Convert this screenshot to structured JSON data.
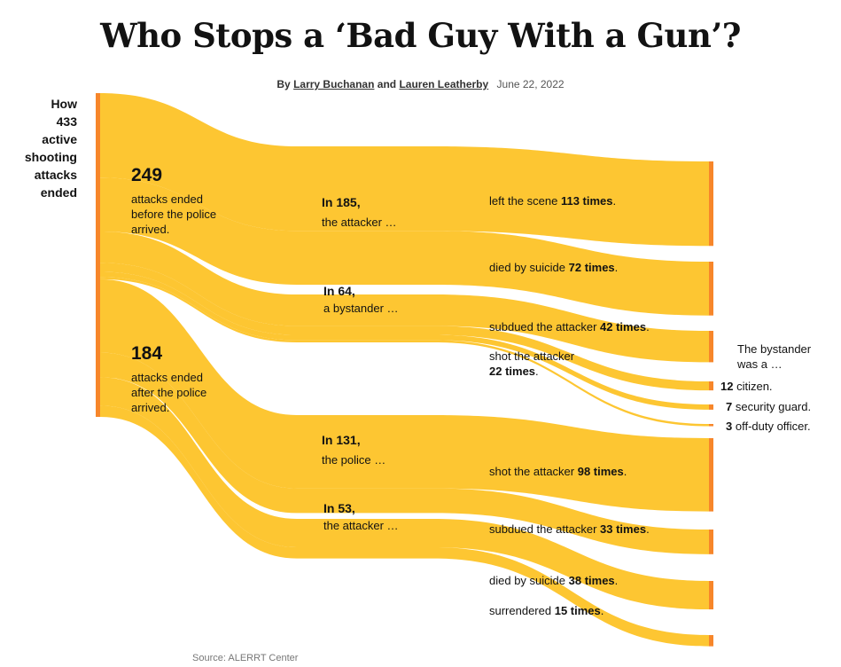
{
  "header": {
    "title": "Who Stops a ‘Bad Guy With a Gun’?",
    "by": "By",
    "author1": "Larry Buchanan",
    "and": "and",
    "author2": "Lauren Leatherby",
    "date": "June 22, 2022"
  },
  "root_label": [
    "How",
    "433",
    "active",
    "shooting",
    "attacks",
    "ended"
  ],
  "labels": {
    "before": {
      "num": "249",
      "text": "attacks ended before the police arrived."
    },
    "after": {
      "num": "184",
      "text": "attacks ended after the police arrived."
    },
    "g185": {
      "head": "In 185,",
      "text": "the attacker …"
    },
    "g64": {
      "head": "In 64,",
      "text": "a bystander …"
    },
    "g131": {
      "head": "In 131,",
      "text": "the police …"
    },
    "g53": {
      "head": "In 53,",
      "text": "the attacker …"
    },
    "left_scene": {
      "pre": "left the scene ",
      "bold": "113 times",
      "post": "."
    },
    "suicide1": {
      "pre": "died by suicide ",
      "bold": "72 times",
      "post": "."
    },
    "subdued1": {
      "pre": "subdued the attacker ",
      "bold": "42 times",
      "post": "."
    },
    "shot1": {
      "pre": "shot the attacker",
      "bold": "22 times",
      "post": "."
    },
    "bystander_head": "The bystander was a …",
    "citizen": {
      "bold": "12",
      "post": " citizen."
    },
    "security": {
      "bold": "7",
      "post": " security guard."
    },
    "offduty": {
      "bold": "3",
      "post": " off-duty officer."
    },
    "shot2": {
      "pre": "shot the attacker ",
      "bold": "98 times",
      "post": "."
    },
    "subdued2": {
      "pre": "subdued the attacker ",
      "bold": "33 times",
      "post": "."
    },
    "suicide2": {
      "pre": "died by suicide ",
      "bold": "38 times",
      "post": "."
    },
    "surrendered": {
      "pre": "surrendered ",
      "bold": "15 times",
      "post": "."
    }
  },
  "source": "Source: ALERRT Center",
  "colors": {
    "flow": "#fdc632",
    "node": "#f7862a"
  },
  "chart_data": {
    "type": "sankey",
    "total": 433,
    "stages": [
      {
        "name": "before police",
        "value": 249,
        "groups": [
          {
            "name": "attacker",
            "value": 185,
            "outcomes": [
              {
                "name": "left the scene",
                "value": 113
              },
              {
                "name": "died by suicide",
                "value": 72
              }
            ]
          },
          {
            "name": "bystander",
            "value": 64,
            "outcomes": [
              {
                "name": "subdued the attacker",
                "value": 42
              },
              {
                "name": "shot the attacker: citizen",
                "value": 12
              },
              {
                "name": "shot the attacker: security guard",
                "value": 7
              },
              {
                "name": "shot the attacker: off-duty officer",
                "value": 3
              }
            ]
          }
        ]
      },
      {
        "name": "after police",
        "value": 184,
        "groups": [
          {
            "name": "police",
            "value": 131,
            "outcomes": [
              {
                "name": "shot the attacker",
                "value": 98
              },
              {
                "name": "subdued the attacker",
                "value": 33
              }
            ]
          },
          {
            "name": "attacker",
            "value": 53,
            "outcomes": [
              {
                "name": "died by suicide",
                "value": 38
              },
              {
                "name": "surrendered",
                "value": 15
              }
            ]
          }
        ]
      }
    ]
  }
}
